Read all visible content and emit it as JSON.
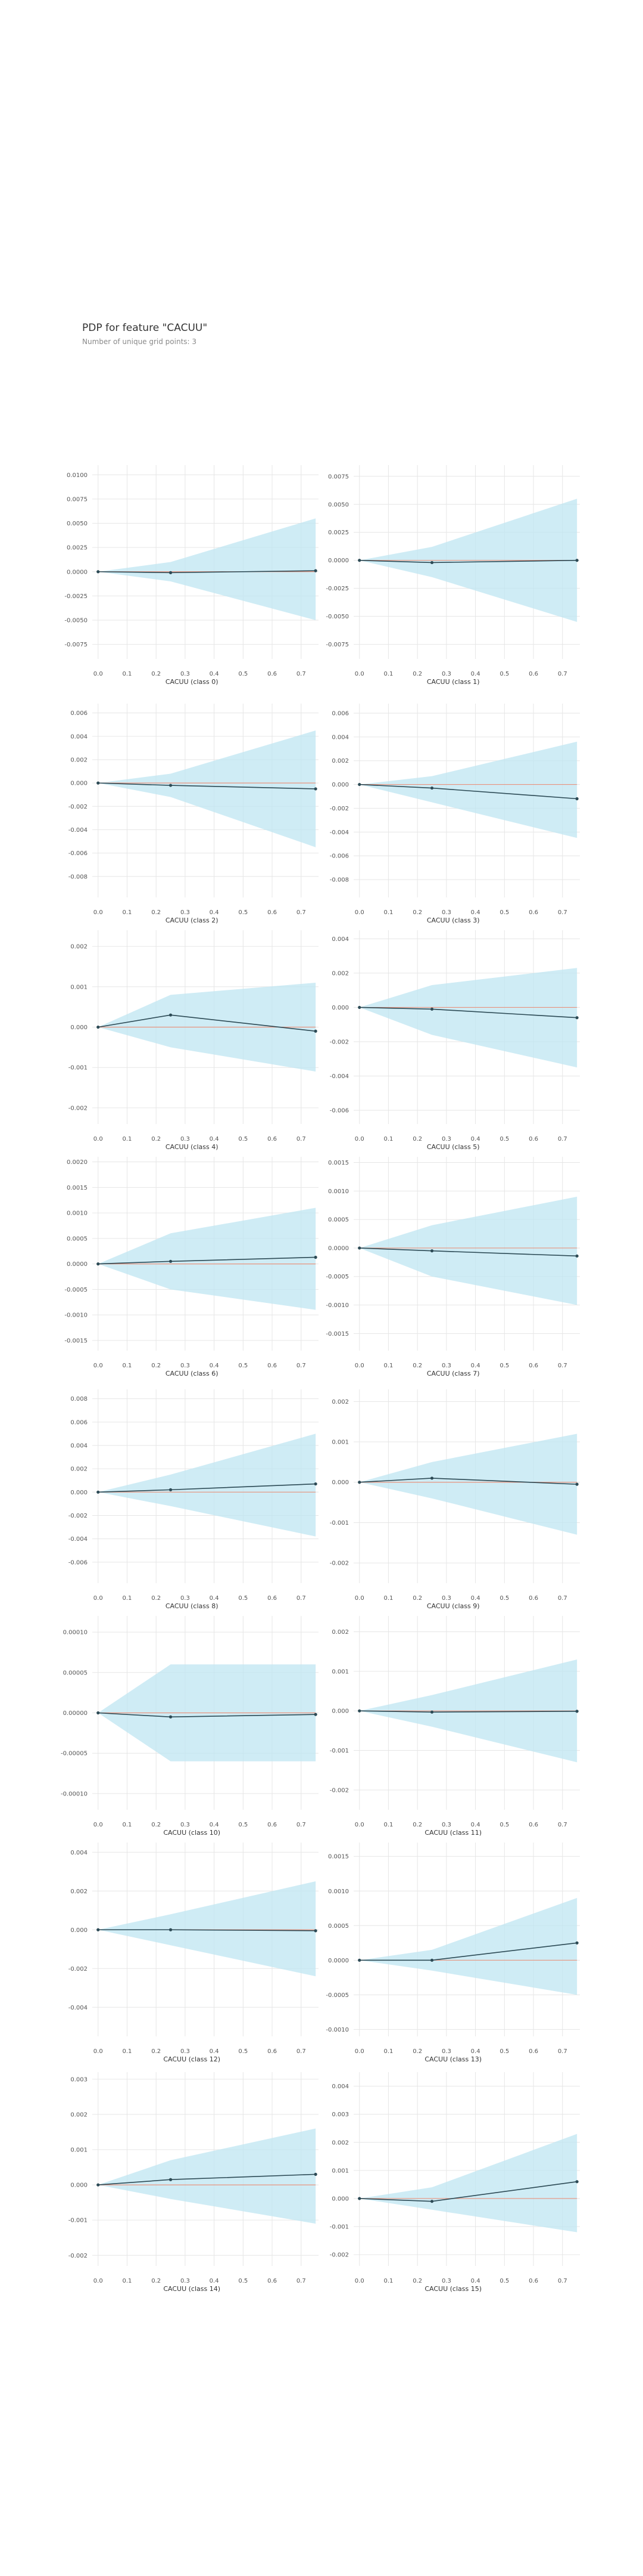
{
  "page": {
    "title": "PDP for feature \"CACUU\"",
    "subtitle": "Number of unique grid points: 3"
  },
  "colors": {
    "band": "#bfe6f1",
    "line": "#2c4a55",
    "zero_line": "#e8937e",
    "grid": "#e6e6e6"
  },
  "chart_data": [
    {
      "type": "line",
      "xlabel": "CACUU (class 0)",
      "x": [
        0,
        0.25,
        0.75
      ],
      "y": [
        0,
        -0.0001,
        0.0001
      ],
      "upper": [
        0,
        0.001,
        0.0055
      ],
      "lower": [
        0,
        -0.001,
        -0.005
      ],
      "ylim": [
        -0.009,
        0.011
      ],
      "yticks": [
        "0.0100",
        "0.0075",
        "0.0050",
        "0.0025",
        "0.0000",
        "-0.0025",
        "-0.0050",
        "-0.0075"
      ],
      "ytick_values": [
        0.01,
        0.0075,
        0.005,
        0.0025,
        0,
        -0.0025,
        -0.005,
        -0.0075
      ],
      "xticks": [
        "0.0",
        "0.1",
        "0.2",
        "0.3",
        "0.4",
        "0.5",
        "0.6",
        "0.7"
      ],
      "xtick_values": [
        0,
        0.1,
        0.2,
        0.3,
        0.4,
        0.5,
        0.6,
        0.7
      ],
      "xlim": [
        -0.02,
        0.76
      ],
      "grid": true
    },
    {
      "type": "line",
      "xlabel": "CACUU (class 1)",
      "x": [
        0,
        0.25,
        0.75
      ],
      "y": [
        0,
        -0.0002,
        0
      ],
      "upper": [
        0,
        0.0012,
        0.0055
      ],
      "lower": [
        0,
        -0.0015,
        -0.0055
      ],
      "ylim": [
        -0.0088,
        0.0085
      ],
      "yticks": [
        "0.0075",
        "0.0050",
        "0.0025",
        "0.0000",
        "-0.0025",
        "-0.0050",
        "-0.0075"
      ],
      "ytick_values": [
        0.0075,
        0.005,
        0.0025,
        0,
        -0.0025,
        -0.005,
        -0.0075
      ],
      "xticks": [
        "0.0",
        "0.1",
        "0.2",
        "0.3",
        "0.4",
        "0.5",
        "0.6",
        "0.7"
      ],
      "xtick_values": [
        0,
        0.1,
        0.2,
        0.3,
        0.4,
        0.5,
        0.6,
        0.7
      ],
      "xlim": [
        -0.02,
        0.76
      ],
      "grid": true
    },
    {
      "type": "line",
      "xlabel": "CACUU (class 2)",
      "x": [
        0,
        0.25,
        0.75
      ],
      "y": [
        0,
        -0.0002,
        -0.0005
      ],
      "upper": [
        0,
        0.0008,
        0.0045
      ],
      "lower": [
        0,
        -0.0012,
        -0.0055
      ],
      "ylim": [
        -0.0098,
        0.0068
      ],
      "yticks": [
        "0.006",
        "0.004",
        "0.002",
        "0.000",
        "-0.002",
        "-0.004",
        "-0.006",
        "-0.008"
      ],
      "ytick_values": [
        0.006,
        0.004,
        0.002,
        0,
        -0.002,
        -0.004,
        -0.006,
        -0.008
      ],
      "xticks": [
        "0.0",
        "0.1",
        "0.2",
        "0.3",
        "0.4",
        "0.5",
        "0.6",
        "0.7"
      ],
      "xtick_values": [
        0,
        0.1,
        0.2,
        0.3,
        0.4,
        0.5,
        0.6,
        0.7
      ],
      "xlim": [
        -0.02,
        0.76
      ],
      "grid": true
    },
    {
      "type": "line",
      "xlabel": "CACUU (class 3)",
      "x": [
        0,
        0.25,
        0.75
      ],
      "y": [
        0,
        -0.0003,
        -0.0012
      ],
      "upper": [
        0,
        0.0007,
        0.0036
      ],
      "lower": [
        0,
        -0.0015,
        -0.0045
      ],
      "ylim": [
        -0.0095,
        0.0068
      ],
      "yticks": [
        "0.006",
        "0.004",
        "0.002",
        "0.000",
        "-0.002",
        "-0.004",
        "-0.006",
        "-0.008"
      ],
      "ytick_values": [
        0.006,
        0.004,
        0.002,
        0,
        -0.002,
        -0.004,
        -0.006,
        -0.008
      ],
      "xticks": [
        "0.0",
        "0.1",
        "0.2",
        "0.3",
        "0.4",
        "0.5",
        "0.6",
        "0.7"
      ],
      "xtick_values": [
        0,
        0.1,
        0.2,
        0.3,
        0.4,
        0.5,
        0.6,
        0.7
      ],
      "xlim": [
        -0.02,
        0.76
      ],
      "grid": true
    },
    {
      "type": "line",
      "xlabel": "CACUU (class 4)",
      "x": [
        0,
        0.25,
        0.75
      ],
      "y": [
        0,
        0.0003,
        -0.0001
      ],
      "upper": [
        0,
        0.0008,
        0.0011
      ],
      "lower": [
        0,
        -0.0005,
        -0.0011
      ],
      "ylim": [
        -0.0024,
        0.0024
      ],
      "yticks": [
        "0.002",
        "0.001",
        "0.000",
        "-0.001",
        "-0.002"
      ],
      "ytick_values": [
        0.002,
        0.001,
        0,
        -0.001,
        -0.002
      ],
      "xticks": [
        "0.0",
        "0.1",
        "0.2",
        "0.3",
        "0.4",
        "0.5",
        "0.6",
        "0.7"
      ],
      "xtick_values": [
        0,
        0.1,
        0.2,
        0.3,
        0.4,
        0.5,
        0.6,
        0.7
      ],
      "xlim": [
        -0.02,
        0.76
      ],
      "grid": true
    },
    {
      "type": "line",
      "xlabel": "CACUU (class 5)",
      "x": [
        0,
        0.25,
        0.75
      ],
      "y": [
        0,
        -0.0001,
        -0.0006
      ],
      "upper": [
        0,
        0.0013,
        0.0023
      ],
      "lower": [
        0,
        -0.0016,
        -0.0035
      ],
      "ylim": [
        -0.0068,
        0.0045
      ],
      "yticks": [
        "0.004",
        "0.002",
        "0.000",
        "-0.002",
        "-0.004",
        "-0.006"
      ],
      "ytick_values": [
        0.004,
        0.002,
        0,
        -0.002,
        -0.004,
        -0.006
      ],
      "xticks": [
        "0.0",
        "0.1",
        "0.2",
        "0.3",
        "0.4",
        "0.5",
        "0.6",
        "0.7"
      ],
      "xtick_values": [
        0,
        0.1,
        0.2,
        0.3,
        0.4,
        0.5,
        0.6,
        0.7
      ],
      "xlim": [
        -0.02,
        0.76
      ],
      "grid": true
    },
    {
      "type": "line",
      "xlabel": "CACUU (class 6)",
      "x": [
        0,
        0.25,
        0.75
      ],
      "y": [
        0,
        5e-05,
        0.00013
      ],
      "upper": [
        0,
        0.0006,
        0.0011
      ],
      "lower": [
        0,
        -0.0005,
        -0.0009
      ],
      "ylim": [
        -0.0017,
        0.0021
      ],
      "yticks": [
        "0.0020",
        "0.0015",
        "0.0010",
        "0.0005",
        "0.0000",
        "-0.0005",
        "-0.0010",
        "-0.0015"
      ],
      "ytick_values": [
        0.002,
        0.0015,
        0.001,
        0.0005,
        0,
        -0.0005,
        -0.001,
        -0.0015
      ],
      "xticks": [
        "0.0",
        "0.1",
        "0.2",
        "0.3",
        "0.4",
        "0.5",
        "0.6",
        "0.7"
      ],
      "xtick_values": [
        0,
        0.1,
        0.2,
        0.3,
        0.4,
        0.5,
        0.6,
        0.7
      ],
      "xlim": [
        -0.02,
        0.76
      ],
      "grid": true
    },
    {
      "type": "line",
      "xlabel": "CACUU (class 7)",
      "x": [
        0,
        0.25,
        0.75
      ],
      "y": [
        0,
        -5e-05,
        -0.00014
      ],
      "upper": [
        0,
        0.0004,
        0.0009
      ],
      "lower": [
        0,
        -0.0005,
        -0.001
      ],
      "ylim": [
        -0.0018,
        0.0016
      ],
      "yticks": [
        "0.0015",
        "0.0010",
        "0.0005",
        "0.0000",
        "-0.0005",
        "-0.0010",
        "-0.0015"
      ],
      "ytick_values": [
        0.0015,
        0.001,
        0.0005,
        0,
        -0.0005,
        -0.001,
        -0.0015
      ],
      "xticks": [
        "0.0",
        "0.1",
        "0.2",
        "0.3",
        "0.4",
        "0.5",
        "0.6",
        "0.7"
      ],
      "xtick_values": [
        0,
        0.1,
        0.2,
        0.3,
        0.4,
        0.5,
        0.6,
        0.7
      ],
      "xlim": [
        -0.02,
        0.76
      ],
      "grid": true
    },
    {
      "type": "line",
      "xlabel": "CACUU (class 8)",
      "x": [
        0,
        0.25,
        0.75
      ],
      "y": [
        0,
        0.0002,
        0.0007
      ],
      "upper": [
        0,
        0.0015,
        0.005
      ],
      "lower": [
        0,
        -0.0012,
        -0.0038
      ],
      "ylim": [
        -0.0078,
        0.0088
      ],
      "yticks": [
        "0.008",
        "0.006",
        "0.004",
        "0.002",
        "0.000",
        "-0.002",
        "-0.004",
        "-0.006"
      ],
      "ytick_values": [
        0.008,
        0.006,
        0.004,
        0.002,
        0,
        -0.002,
        -0.004,
        -0.006
      ],
      "xticks": [
        "0.0",
        "0.1",
        "0.2",
        "0.3",
        "0.4",
        "0.5",
        "0.6",
        "0.7"
      ],
      "xtick_values": [
        0,
        0.1,
        0.2,
        0.3,
        0.4,
        0.5,
        0.6,
        0.7
      ],
      "xlim": [
        -0.02,
        0.76
      ],
      "grid": true
    },
    {
      "type": "line",
      "xlabel": "CACUU (class 9)",
      "x": [
        0,
        0.25,
        0.75
      ],
      "y": [
        0,
        0.0001,
        -5e-05
      ],
      "upper": [
        0,
        0.0005,
        0.0012
      ],
      "lower": [
        0,
        -0.0004,
        -0.0013
      ],
      "ylim": [
        -0.0025,
        0.0023
      ],
      "yticks": [
        "0.002",
        "0.001",
        "0.000",
        "-0.001",
        "-0.002"
      ],
      "ytick_values": [
        0.002,
        0.001,
        0,
        -0.001,
        -0.002
      ],
      "xticks": [
        "0.0",
        "0.1",
        "0.2",
        "0.3",
        "0.4",
        "0.5",
        "0.6",
        "0.7"
      ],
      "xtick_values": [
        0,
        0.1,
        0.2,
        0.3,
        0.4,
        0.5,
        0.6,
        0.7
      ],
      "xlim": [
        -0.02,
        0.76
      ],
      "grid": true
    },
    {
      "type": "line",
      "xlabel": "CACUU (class 10)",
      "x": [
        0,
        0.25,
        0.75
      ],
      "y": [
        0,
        -5e-06,
        -2e-06
      ],
      "upper": [
        0,
        6e-05,
        6e-05
      ],
      "lower": [
        0,
        -6e-05,
        -6e-05
      ],
      "ylim": [
        -0.00012,
        0.00012
      ],
      "yticks": [
        "0.00010",
        "0.00005",
        "0.00000",
        "-0.00005",
        "-0.00010"
      ],
      "ytick_values": [
        0.0001,
        5e-05,
        0,
        -5e-05,
        -0.0001
      ],
      "xticks": [
        "0.0",
        "0.1",
        "0.2",
        "0.3",
        "0.4",
        "0.5",
        "0.6",
        "0.7"
      ],
      "xtick_values": [
        0,
        0.1,
        0.2,
        0.3,
        0.4,
        0.5,
        0.6,
        0.7
      ],
      "xlim": [
        -0.02,
        0.76
      ],
      "grid": true
    },
    {
      "type": "line",
      "xlabel": "CACUU (class 11)",
      "x": [
        0,
        0.25,
        0.75
      ],
      "y": [
        0,
        -3e-05,
        -1e-05
      ],
      "upper": [
        0,
        0.0004,
        0.0013
      ],
      "lower": [
        0,
        -0.0004,
        -0.0013
      ],
      "ylim": [
        -0.0025,
        0.0024
      ],
      "yticks": [
        "0.002",
        "0.001",
        "0.000",
        "-0.001",
        "-0.002"
      ],
      "ytick_values": [
        0.002,
        0.001,
        0,
        -0.001,
        -0.002
      ],
      "xticks": [
        "0.0",
        "0.1",
        "0.2",
        "0.3",
        "0.4",
        "0.5",
        "0.6",
        "0.7"
      ],
      "xtick_values": [
        0,
        0.1,
        0.2,
        0.3,
        0.4,
        0.5,
        0.6,
        0.7
      ],
      "xlim": [
        -0.02,
        0.76
      ],
      "grid": true
    },
    {
      "type": "line",
      "xlabel": "CACUU (class 12)",
      "x": [
        0,
        0.25,
        0.75
      ],
      "y": [
        0,
        0,
        -5e-05
      ],
      "upper": [
        0,
        0.0008,
        0.0025
      ],
      "lower": [
        0,
        -0.0008,
        -0.0024
      ],
      "ylim": [
        -0.0055,
        0.0045
      ],
      "yticks": [
        "0.004",
        "0.002",
        "0.000",
        "-0.002",
        "-0.004"
      ],
      "ytick_values": [
        0.004,
        0.002,
        0,
        -0.002,
        -0.004
      ],
      "xticks": [
        "0.0",
        "0.1",
        "0.2",
        "0.3",
        "0.4",
        "0.5",
        "0.6",
        "0.7"
      ],
      "xtick_values": [
        0,
        0.1,
        0.2,
        0.3,
        0.4,
        0.5,
        0.6,
        0.7
      ],
      "xlim": [
        -0.02,
        0.76
      ],
      "grid": true
    },
    {
      "type": "line",
      "xlabel": "CACUU (class 13)",
      "x": [
        0,
        0.25,
        0.75
      ],
      "y": [
        0,
        0,
        0.00025
      ],
      "upper": [
        0,
        0.00015,
        0.0009
      ],
      "lower": [
        0,
        -0.00015,
        -0.0005
      ],
      "ylim": [
        -0.0011,
        0.0017
      ],
      "yticks": [
        "0.0015",
        "0.0010",
        "0.0005",
        "0.0000",
        "-0.0005",
        "-0.0010"
      ],
      "ytick_values": [
        0.0015,
        0.001,
        0.0005,
        0,
        -0.0005,
        -0.001
      ],
      "xticks": [
        "0.0",
        "0.1",
        "0.2",
        "0.3",
        "0.4",
        "0.5",
        "0.6",
        "0.7"
      ],
      "xtick_values": [
        0,
        0.1,
        0.2,
        0.3,
        0.4,
        0.5,
        0.6,
        0.7
      ],
      "xlim": [
        -0.02,
        0.76
      ],
      "grid": true
    },
    {
      "type": "line",
      "xlabel": "CACUU (class 14)",
      "x": [
        0,
        0.25,
        0.75
      ],
      "y": [
        0,
        0.00015,
        0.0003
      ],
      "upper": [
        0,
        0.0007,
        0.0016
      ],
      "lower": [
        0,
        -0.0004,
        -0.0011
      ],
      "ylim": [
        -0.0023,
        0.0032
      ],
      "yticks": [
        "0.003",
        "0.002",
        "0.001",
        "0.000",
        "-0.001",
        "-0.002"
      ],
      "ytick_values": [
        0.003,
        0.002,
        0.001,
        0,
        -0.001,
        -0.002
      ],
      "xticks": [
        "0.0",
        "0.1",
        "0.2",
        "0.3",
        "0.4",
        "0.5",
        "0.6",
        "0.7"
      ],
      "xtick_values": [
        0,
        0.1,
        0.2,
        0.3,
        0.4,
        0.5,
        0.6,
        0.7
      ],
      "xlim": [
        -0.02,
        0.76
      ],
      "grid": true
    },
    {
      "type": "line",
      "xlabel": "CACUU (class 15)",
      "x": [
        0,
        0.25,
        0.75
      ],
      "y": [
        0,
        -0.0001,
        0.0006
      ],
      "upper": [
        0,
        0.0004,
        0.0023
      ],
      "lower": [
        0,
        -0.0004,
        -0.0012
      ],
      "ylim": [
        -0.0024,
        0.0045
      ],
      "yticks": [
        "0.004",
        "0.003",
        "0.002",
        "0.001",
        "0.000",
        "-0.001",
        "-0.002"
      ],
      "ytick_values": [
        0.004,
        0.003,
        0.002,
        0.001,
        0,
        -0.001,
        -0.002
      ],
      "xticks": [
        "0.0",
        "0.1",
        "0.2",
        "0.3",
        "0.4",
        "0.5",
        "0.6",
        "0.7"
      ],
      "xtick_values": [
        0,
        0.1,
        0.2,
        0.3,
        0.4,
        0.5,
        0.6,
        0.7
      ],
      "xlim": [
        -0.02,
        0.76
      ],
      "grid": true
    }
  ]
}
